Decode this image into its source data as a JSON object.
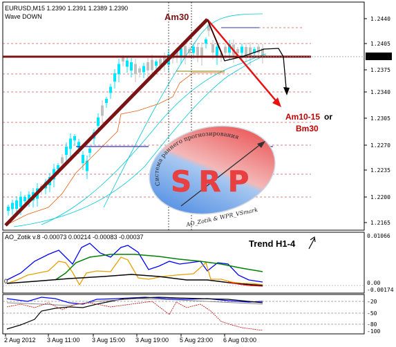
{
  "main_pane": {
    "header": "EURUSD,M15  1.2390 1.2391 1.2389 1.2390",
    "subheader": "Wave DOWN",
    "price_ticks": [
      "1.2440",
      "1.2405",
      "1.2375",
      "1.2340",
      "1.2305",
      "1.2270",
      "1.2235",
      "1.2200",
      "1.2165"
    ],
    "current_price": "1.2390"
  },
  "annotations": {
    "am30": "Am30",
    "target_line1": "Am10-15",
    "target_or": "or",
    "target_line2": "Bm30",
    "trend": "Trend H1-4"
  },
  "logo": {
    "center_text": "SRP",
    "top_arc": "Система раннего прогнозирования",
    "bottom_arc": "AO_Zotik & WPR_VSmark"
  },
  "ao_pane": {
    "header": "AO_Zotik v.8 -0.00073 0.00214 -0.00083 -0.00037",
    "ticks": [
      "0.01066",
      "0.00",
      "-0.00174"
    ],
    "zero_label": "0"
  },
  "wpr_pane": {
    "ticks": [
      "-20",
      "-50",
      "-80",
      "-100"
    ]
  },
  "time_axis": [
    "2 Aug 2012",
    "3 Aug 11:00",
    "3 Aug 15:00",
    "3 Aug 19:00",
    "5 Aug 23:00",
    "6 Aug 03:00"
  ],
  "colors": {
    "bull_candle": "#00e5ff",
    "bear_candle": "#c0c0c0",
    "trend_line": "#7a1414",
    "arrow_red": "#e81010",
    "grid": "#b00000",
    "ma_band": "#00c8d8",
    "ao_blue": "#0000ff",
    "ao_orange": "#e8a000",
    "ao_green": "#008000"
  }
}
